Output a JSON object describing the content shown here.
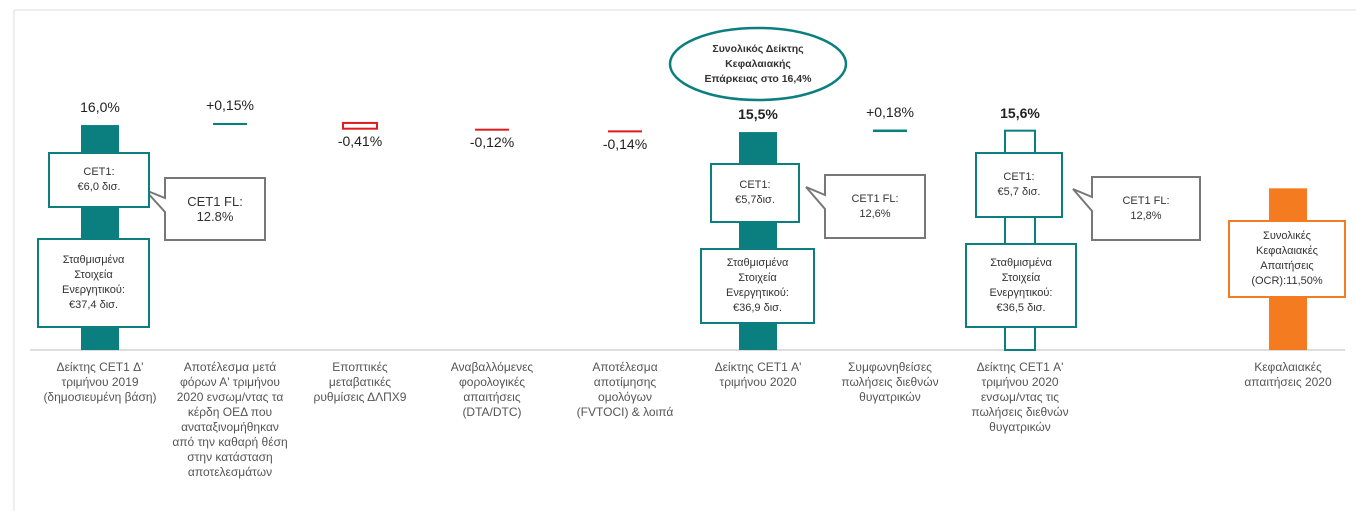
{
  "chart_data": {
    "type": "waterfall",
    "categories": [
      "Δείκτης CET1 Δ'\nτριμήνου 2019\n(δημοσιευμένη βάση)",
      "Αποτέλεσμα μετά\nφόρων Α' τριμήνου\n2020 ενσωμ/ντας τα\nκέρδη ΟΕΔ που\nαναταξινομήθηκαν\nαπό την καθαρή θέση\nστην κατάσταση\nαποτελεσμάτων",
      "Εποπτικές\nμεταβατικές\nρυθμίσεις ΔΛΠΧ9",
      "Αναβαλλόμενες\nφορολογικές\nαπαιτήσεις\n(DTA/DTC)",
      "Αποτέλεσμα\nαποτίμησης\nομολόγων\n(FVTOCI) & λοιπά",
      "Δείκτης CET1 Α'\nτριμήνου 2020",
      "Συμφωνηθείσες\nπωλήσεις διεθνών\nθυγατρικών",
      "Δείκτης CET1  Α'\nτριμήνου 2020\nενσωμ/ντας τις\nπωλήσεις διεθνών\nθυγατρικών",
      null,
      "Κεφαλαιακές\nαπαιτήσεις 2020"
    ],
    "values": [
      16.0,
      0.15,
      -0.41,
      -0.12,
      -0.14,
      15.5,
      0.18,
      15.6,
      null,
      11.5
    ],
    "value_labels": [
      "16,0%",
      "+0,15%",
      "-0,41%",
      "-0,12%",
      "-0,14%",
      "15,5%",
      "+0,18%",
      "15,6%",
      null,
      null
    ],
    "totals": [
      true,
      false,
      false,
      false,
      false,
      true,
      false,
      true,
      false,
      true
    ],
    "hollow": [
      false,
      false,
      true,
      false,
      false,
      false,
      false,
      true,
      false,
      false
    ],
    "colors": [
      "#0b7f7f",
      "#0b7f7f",
      "#e01b1b",
      "#e01b1b",
      "#e01b1b",
      "#0b7f7f",
      "#0b7f7f",
      "#0b7f7f",
      null,
      "#f47b20"
    ],
    "annotations": [
      {
        "text": "CET1:\n€6,0 δισ."
      },
      {
        "text": "Σταθμισμένα\nΣτοιχεία\nΕνεργητικού:\n€37,4 δισ."
      },
      {
        "text": "CET1 FL:\n12.8%"
      },
      {
        "text": "Συνολικός Δείκτης\nΚεφαλαιακής\nΕπάρκειας στο 16,4%"
      },
      {
        "text": "CET1:\n€5,7δισ."
      },
      {
        "text": "Σταθμισμένα\nΣτοιχεία\nΕνεργητικού:\n€36,9 δισ."
      },
      {
        "text": "CET1 FL:\n12,6%"
      },
      {
        "text": "CET1:\n€5,7 δισ."
      },
      {
        "text": "Σταθμισμένα\nΣτοιχεία\nΕνεργητικού:\n€36,5 δισ."
      },
      {
        "text": "CET1 FL:\n12,8%"
      },
      {
        "text": "Συνολικές\nΚεφαλαιακές\nΑπαιτήσεις\n(OCR):11,50%"
      }
    ]
  }
}
